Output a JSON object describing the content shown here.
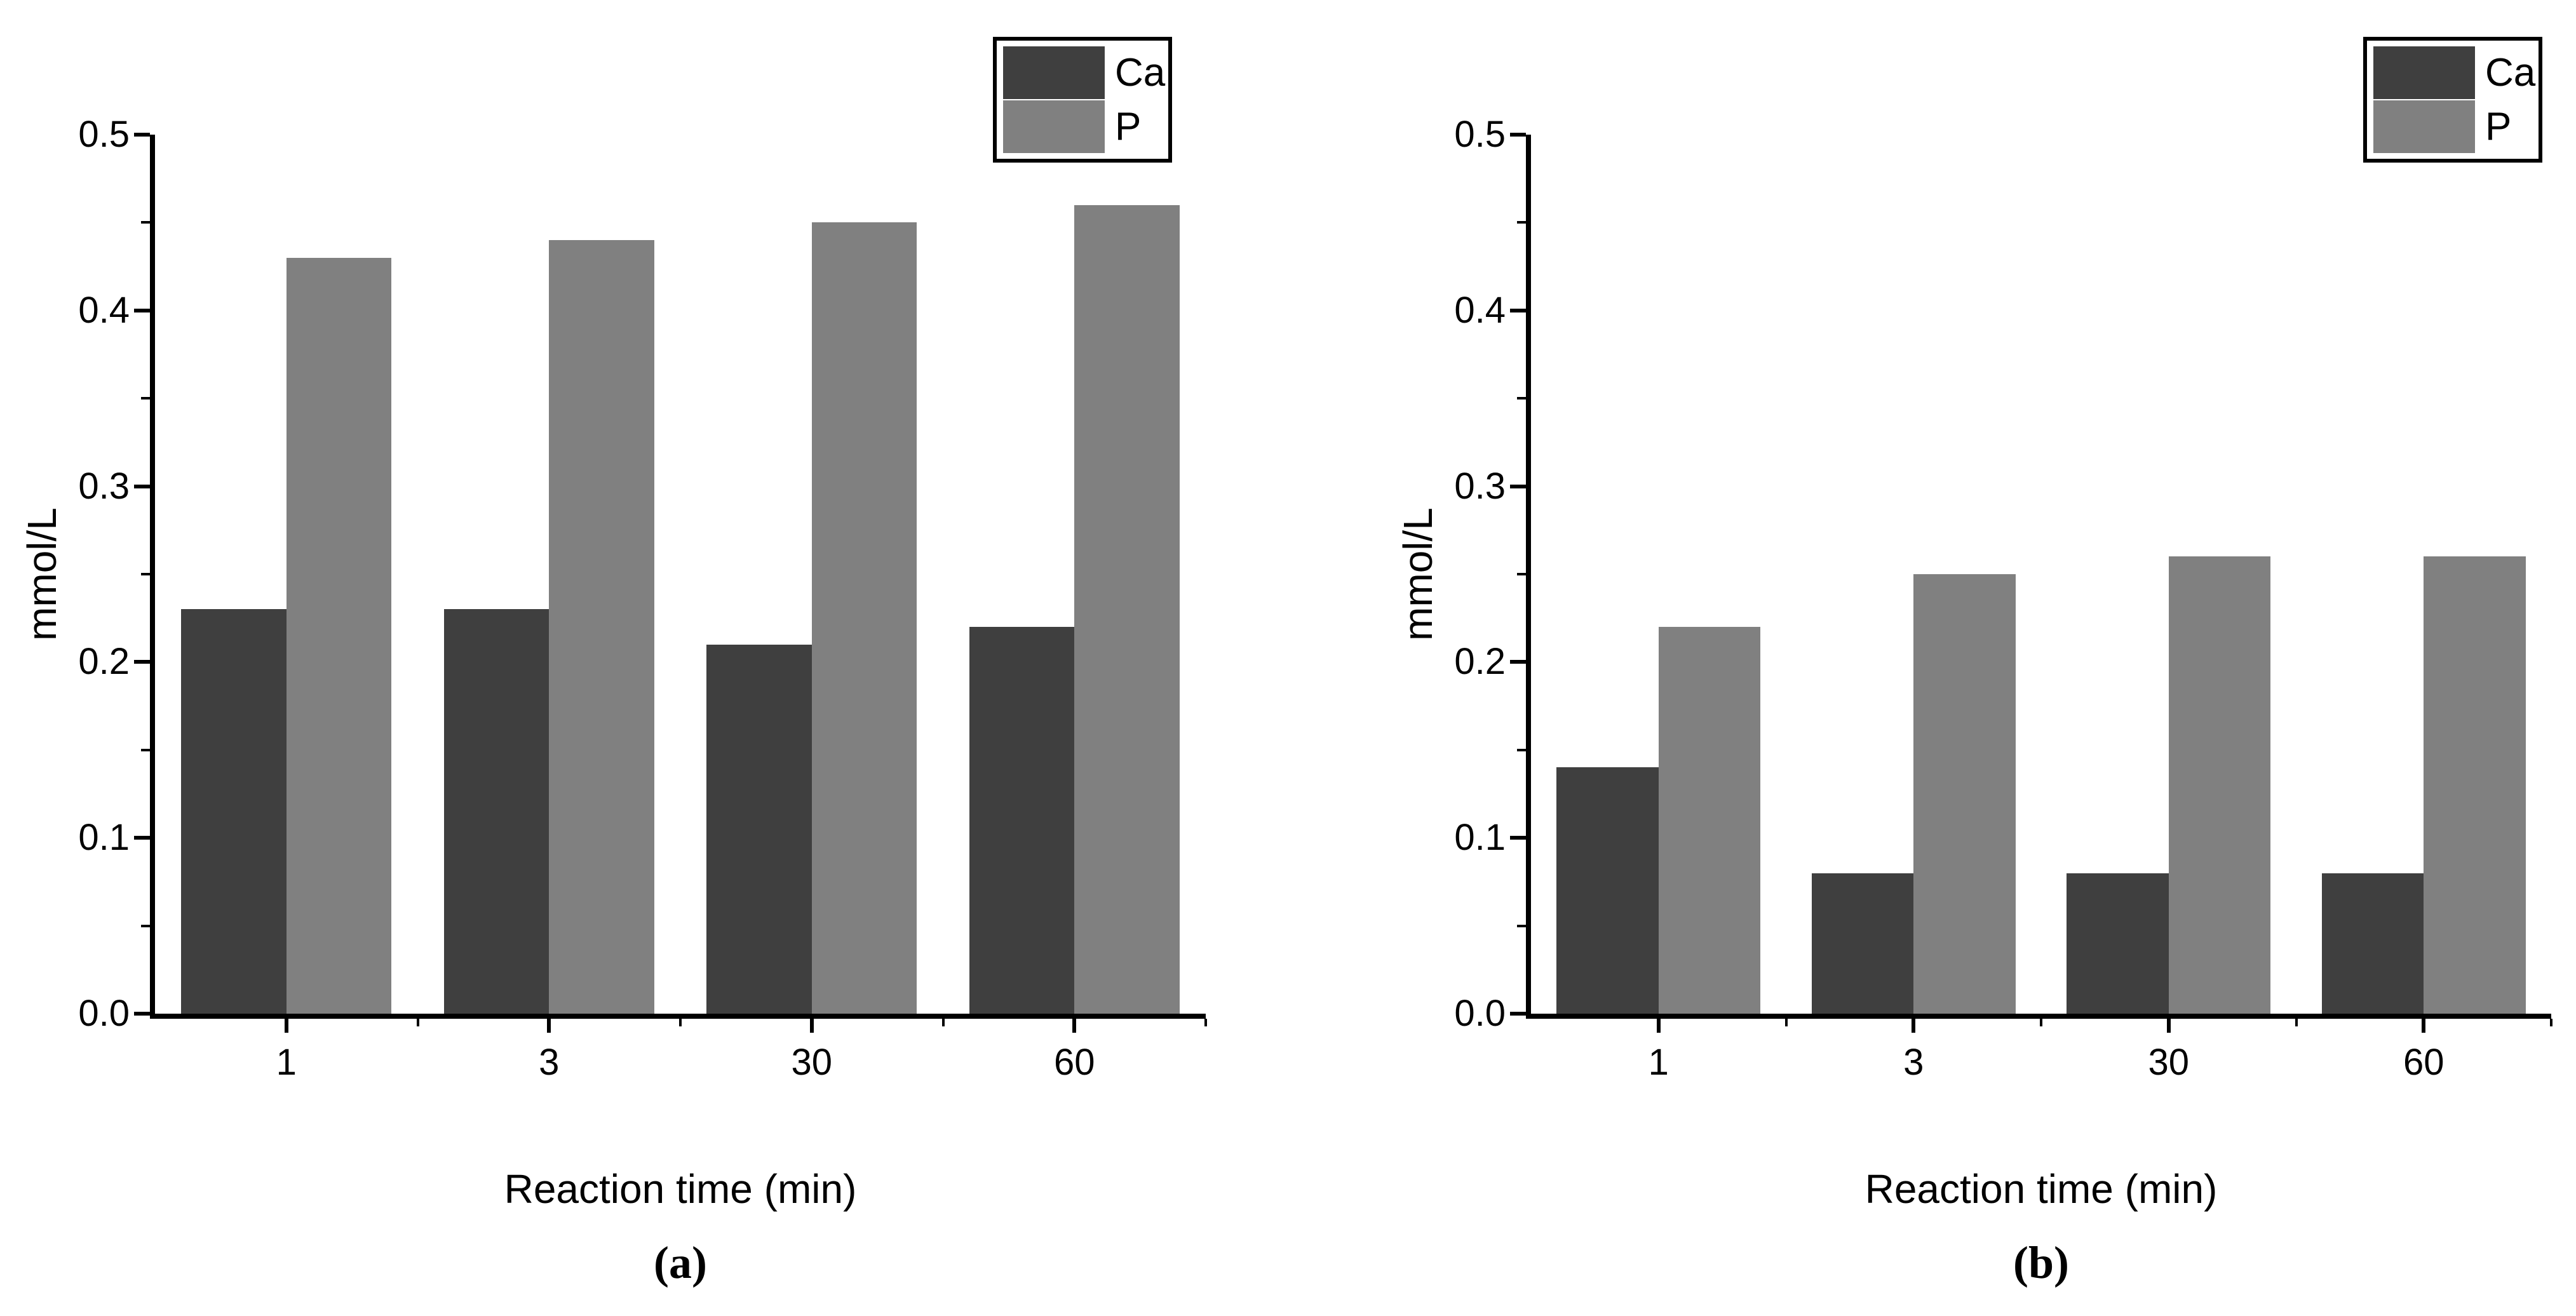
{
  "figure": {
    "background_color": "#ffffff",
    "axis_color": "#000000"
  },
  "chart_data": [
    {
      "type": "bar",
      "panel_label": "(a)",
      "title": "",
      "categories": [
        "1",
        "3",
        "30",
        "60"
      ],
      "series": [
        {
          "name": "Ca",
          "color": "#3f3f3f",
          "values": [
            0.23,
            0.23,
            0.21,
            0.22
          ]
        },
        {
          "name": "P",
          "color": "#808080",
          "values": [
            0.43,
            0.44,
            0.45,
            0.46
          ]
        }
      ],
      "xlabel": "Reaction time (min)",
      "ylabel": "mmol/L",
      "ylim": [
        0,
        0.5
      ],
      "yticks": [
        "0.0",
        "0.1",
        "0.2",
        "0.3",
        "0.4",
        "0.5"
      ],
      "yminor_per_major": 2,
      "grid": false,
      "legend": {
        "entries": [
          "Ca",
          "P"
        ],
        "position": "top-right",
        "border_color": "#000000"
      }
    },
    {
      "type": "bar",
      "panel_label": "(b)",
      "title": "",
      "categories": [
        "1",
        "3",
        "30",
        "60"
      ],
      "series": [
        {
          "name": "Ca",
          "color": "#3f3f3f",
          "values": [
            0.14,
            0.08,
            0.08,
            0.08
          ]
        },
        {
          "name": "P",
          "color": "#808080",
          "values": [
            0.22,
            0.25,
            0.26,
            0.26
          ]
        }
      ],
      "xlabel": "Reaction time (min)",
      "ylabel": "mmol/L",
      "ylim": [
        0,
        0.5
      ],
      "yticks": [
        "0.0",
        "0.1",
        "0.2",
        "0.3",
        "0.4",
        "0.5"
      ],
      "yminor_per_major": 2,
      "grid": false,
      "legend": {
        "entries": [
          "Ca",
          "P"
        ],
        "position": "top-right",
        "border_color": "#000000"
      }
    }
  ]
}
